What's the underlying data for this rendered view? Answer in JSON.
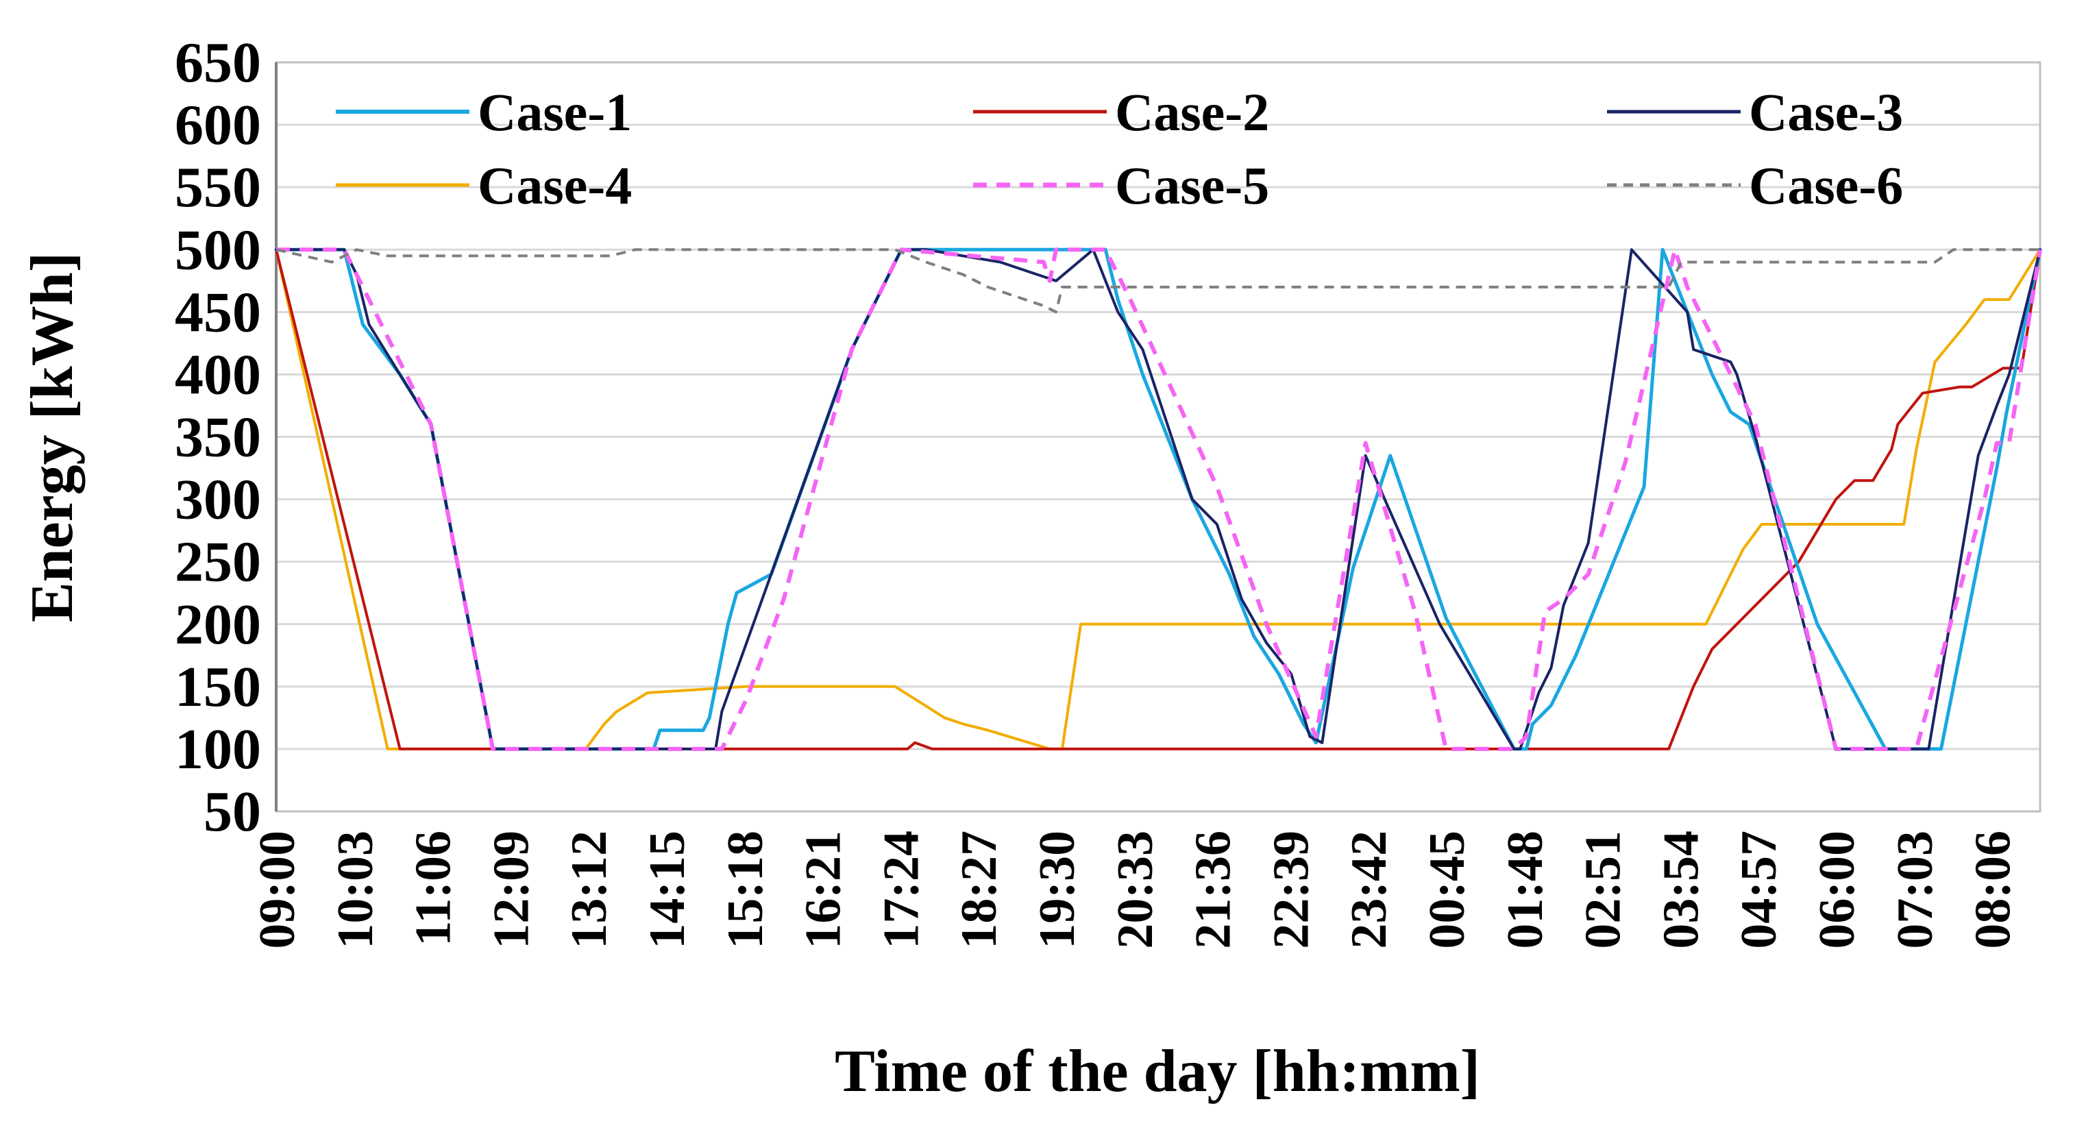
{
  "chart_data": {
    "type": "line",
    "title": "",
    "xlabel": "Time of the day [hh:mm]",
    "ylabel": "Energy [kWh]",
    "ylim": [
      50,
      650
    ],
    "yticks": [
      50,
      100,
      150,
      200,
      250,
      300,
      350,
      400,
      450,
      500,
      550,
      600,
      650
    ],
    "xlim": [
      0,
      1425
    ],
    "x_unit": "minutes after 09:00",
    "xticks": [
      {
        "x": 0,
        "label": "09:00"
      },
      {
        "x": 63,
        "label": "10:03"
      },
      {
        "x": 126,
        "label": "11:06"
      },
      {
        "x": 189,
        "label": "12:09"
      },
      {
        "x": 252,
        "label": "13:12"
      },
      {
        "x": 315,
        "label": "14:15"
      },
      {
        "x": 378,
        "label": "15:18"
      },
      {
        "x": 441,
        "label": "16:21"
      },
      {
        "x": 504,
        "label": "17:24"
      },
      {
        "x": 567,
        "label": "18:27"
      },
      {
        "x": 630,
        "label": "19:30"
      },
      {
        "x": 693,
        "label": "20:33"
      },
      {
        "x": 756,
        "label": "21:36"
      },
      {
        "x": 819,
        "label": "22:39"
      },
      {
        "x": 882,
        "label": "23:42"
      },
      {
        "x": 945,
        "label": "00:45"
      },
      {
        "x": 1008,
        "label": "01:48"
      },
      {
        "x": 1071,
        "label": "02:51"
      },
      {
        "x": 1134,
        "label": "03:54"
      },
      {
        "x": 1197,
        "label": "04:57"
      },
      {
        "x": 1260,
        "label": "06:00"
      },
      {
        "x": 1323,
        "label": "07:03"
      },
      {
        "x": 1386,
        "label": "08:06"
      }
    ],
    "grid": true,
    "legend_position": "top, 3 columns x 2 rows",
    "series": [
      {
        "name": "Case-1",
        "color": "#1aa7e0",
        "width": 5,
        "dash": "",
        "x": [
          0,
          55,
          70,
          100,
          125,
          175,
          180,
          305,
          310,
          345,
          350,
          365,
          372,
          400,
          465,
          505,
          670,
          680,
          700,
          740,
          770,
          790,
          810,
          830,
          840,
          870,
          900,
          945,
          1000,
          1010,
          1015,
          1030,
          1050,
          1105,
          1120,
          1140,
          1160,
          1175,
          1190,
          1245,
          1300,
          1300,
          1345,
          1390,
          1398,
          1425
        ],
        "y": [
          500,
          500,
          440,
          400,
          360,
          100,
          100,
          100,
          115,
          115,
          125,
          200,
          225,
          240,
          420,
          500,
          500,
          460,
          400,
          300,
          240,
          190,
          160,
          120,
          105,
          245,
          335,
          205,
          100,
          100,
          120,
          135,
          175,
          310,
          500,
          450,
          400,
          370,
          360,
          200,
          100,
          100,
          100,
          325,
          370,
          500
        ]
      },
      {
        "name": "Case-2",
        "color": "#c0140f",
        "width": 4,
        "dash": "",
        "x": [
          0,
          55,
          80,
          100,
          160,
          400,
          510,
          516,
          530,
          880,
          1125,
          1145,
          1160,
          1230,
          1260,
          1275,
          1290,
          1305,
          1310,
          1330,
          1360,
          1370,
          1395,
          1410,
          1425
        ],
        "y": [
          500,
          280,
          180,
          100,
          100,
          100,
          100,
          105,
          100,
          100,
          100,
          150,
          180,
          250,
          300,
          315,
          315,
          340,
          360,
          385,
          390,
          390,
          405,
          405,
          500
        ]
      },
      {
        "name": "Case-3",
        "color": "#1a2465",
        "width": 4,
        "dash": "",
        "x": [
          0,
          55,
          65,
          75,
          100,
          125,
          175,
          305,
          355,
          360,
          380,
          465,
          505,
          525,
          585,
          630,
          660,
          680,
          700,
          720,
          740,
          760,
          780,
          800,
          820,
          835,
          845,
          880,
          940,
          1000,
          1005,
          1020,
          1030,
          1040,
          1060,
          1095,
          1140,
          1145,
          1175,
          1180,
          1195,
          1260,
          1310,
          1335,
          1375,
          1390,
          1400,
          1425
        ],
        "y": [
          500,
          500,
          480,
          440,
          400,
          360,
          100,
          100,
          100,
          130,
          185,
          420,
          500,
          500,
          490,
          475,
          500,
          450,
          420,
          360,
          300,
          280,
          220,
          185,
          160,
          110,
          105,
          335,
          200,
          100,
          100,
          145,
          165,
          215,
          265,
          500,
          450,
          420,
          410,
          400,
          350,
          100,
          100,
          100,
          335,
          375,
          400,
          500
        ]
      },
      {
        "name": "Case-4",
        "color": "#f2ad00",
        "width": 4,
        "dash": "",
        "x": [
          0,
          90,
          110,
          250,
          265,
          275,
          300,
          380,
          500,
          540,
          555,
          575,
          625,
          635,
          650,
          1155,
          1185,
          1200,
          1265,
          1315,
          1325,
          1340,
          1365,
          1380,
          1400,
          1425
        ],
        "y": [
          500,
          100,
          100,
          100,
          120,
          130,
          145,
          150,
          150,
          125,
          120,
          115,
          100,
          100,
          200,
          200,
          260,
          280,
          280,
          280,
          340,
          410,
          440,
          460,
          460,
          500
        ]
      },
      {
        "name": "Case-5",
        "color": "#f564f5",
        "width": 6,
        "dash": "20,14",
        "x": [
          0,
          55,
          75,
          100,
          125,
          175,
          360,
          380,
          410,
          465,
          505,
          620,
          625,
          630,
          670,
          690,
          760,
          800,
          840,
          880,
          920,
          945,
          1000,
          1010,
          1025,
          1040,
          1060,
          1090,
          1130,
          1140,
          1170,
          1195,
          1260,
          1305,
          1325,
          1380,
          1390,
          1400,
          1425
        ],
        "y": [
          500,
          500,
          460,
          410,
          360,
          100,
          100,
          140,
          220,
          420,
          500,
          490,
          475,
          500,
          500,
          460,
          310,
          200,
          110,
          345,
          210,
          100,
          100,
          110,
          210,
          220,
          240,
          330,
          500,
          470,
          410,
          360,
          100,
          100,
          100,
          300,
          345,
          345,
          500
        ]
      },
      {
        "name": "Case-6",
        "color": "#7f7f7f",
        "width": 4,
        "dash": "14,10",
        "x": [
          0,
          45,
          65,
          90,
          100,
          270,
          290,
          500,
          525,
          555,
          575,
          620,
          630,
          635,
          650,
          1125,
          1135,
          1295,
          1310,
          1340,
          1355,
          1395,
          1425
        ],
        "y": [
          500,
          490,
          500,
          495,
          495,
          495,
          500,
          500,
          490,
          480,
          470,
          455,
          450,
          470,
          470,
          470,
          490,
          490,
          490,
          490,
          500,
          500,
          500
        ]
      }
    ]
  }
}
